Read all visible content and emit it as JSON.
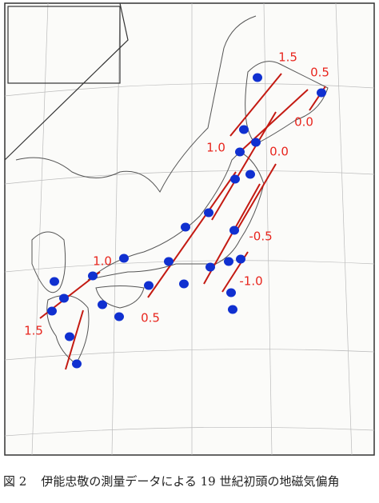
{
  "figure": {
    "caption_label": "図 2",
    "caption_text": "伊能忠敬の測量データによる 19 世紀初頭の地磁気偏角",
    "isogonic_labels": [
      "1.5",
      "0.5",
      "0.0",
      "1.0",
      "0.0",
      "-0.5",
      "1.0",
      "-1.0",
      "0.5",
      "1.5"
    ]
  }
}
